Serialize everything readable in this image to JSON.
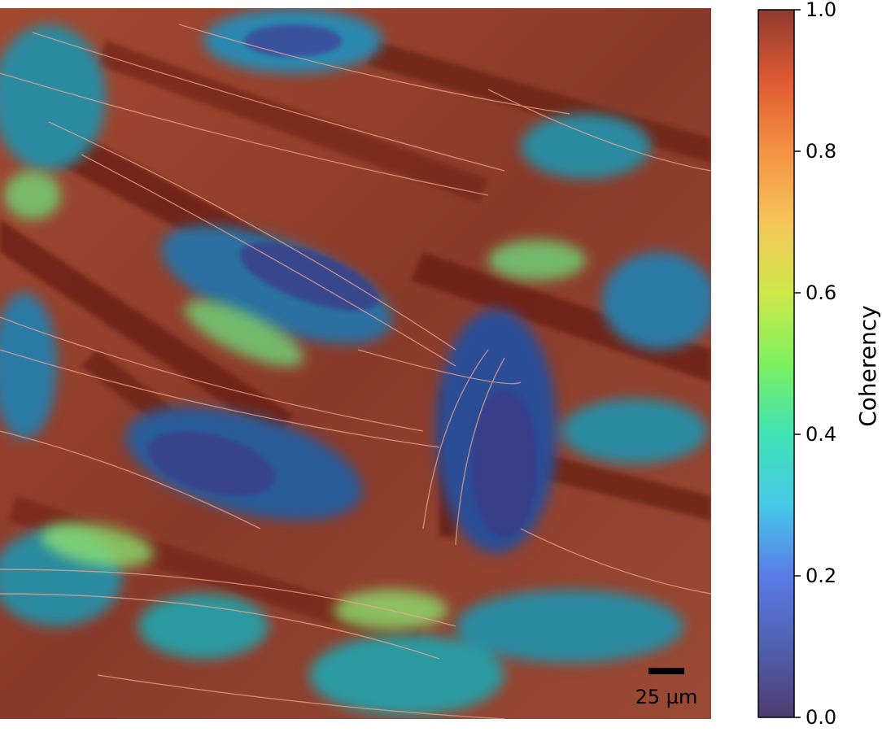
{
  "image": {
    "description_icon": "fluorescence-micrograph-coherency-overlay",
    "scalebar": {
      "label": "25 µm"
    }
  },
  "colorbar": {
    "label": "Coherency",
    "ticks": [
      "0.0",
      "0.2",
      "0.4",
      "0.6",
      "0.8",
      "1.0"
    ],
    "colormap": [
      "#4d3c6e",
      "#5a7be8",
      "#47c8e8",
      "#3fe3b5",
      "#7ef05f",
      "#cfe84a",
      "#f5c55a",
      "#f59243",
      "#df5a32",
      "#a83a2c",
      "#8f3a30"
    ]
  }
}
